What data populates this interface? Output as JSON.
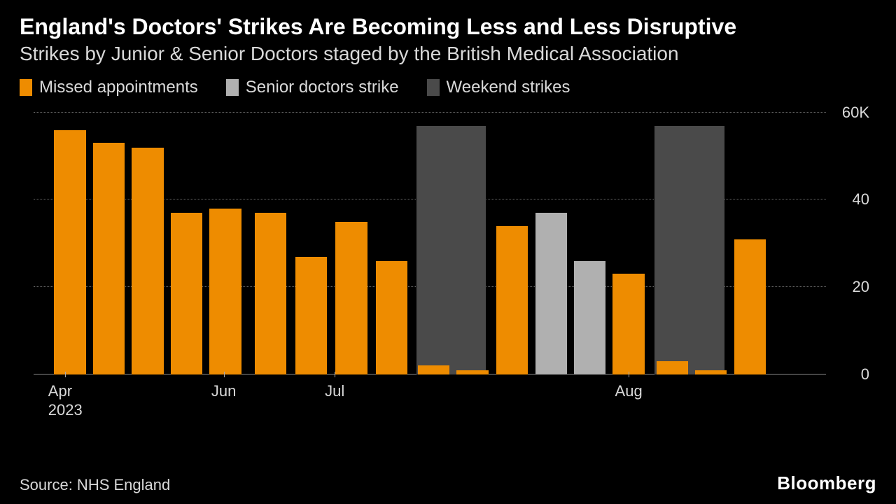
{
  "title": "England's Doctors' Strikes Are Becoming Less and Less Disruptive",
  "subtitle": "Strikes by Junior & Senior Doctors staged by the British Medical Association",
  "source": "Source: NHS England",
  "brand": "Bloomberg",
  "legend": [
    {
      "label": "Missed appointments",
      "color": "#ee8c00"
    },
    {
      "label": "Senior doctors strike",
      "color": "#b0b0b0"
    },
    {
      "label": "Weekend strikes",
      "color": "#4a4a4a"
    }
  ],
  "chart": {
    "type": "bar",
    "background_color": "#000000",
    "grid_color": "#666666",
    "axis_color": "#888888",
    "text_color": "#d9d9d9",
    "bar_width_pct": 4.0,
    "bar_gap_pct": 0.9,
    "ylim": [
      0,
      60
    ],
    "yticks": [
      0,
      20,
      40,
      60
    ],
    "ytick_labels": [
      "0",
      "20",
      "40",
      "60K"
    ],
    "bg_bar_width_pct": 8.8,
    "background_bars": [
      {
        "left_pct": 48.3,
        "value": 57
      },
      {
        "left_pct": 78.4,
        "value": 57
      }
    ],
    "bars": [
      {
        "value": 56,
        "color": "#ee8c00"
      },
      {
        "value": 53,
        "color": "#ee8c00"
      },
      {
        "value": 52,
        "color": "#ee8c00"
      },
      {
        "value": 37,
        "color": "#ee8c00"
      },
      {
        "value": 38,
        "color": "#ee8c00"
      },
      {
        "value": 37,
        "color": "#ee8c00"
      },
      {
        "value": 27,
        "color": "#ee8c00"
      },
      {
        "value": 35,
        "color": "#ee8c00"
      },
      {
        "value": 26,
        "color": "#ee8c00"
      },
      {
        "value": 2,
        "color": "#ee8c00"
      },
      {
        "value": 1,
        "color": "#ee8c00"
      },
      {
        "value": 34,
        "color": "#ee8c00"
      },
      {
        "value": 37,
        "color": "#b0b0b0"
      },
      {
        "value": 26,
        "color": "#b0b0b0"
      },
      {
        "value": 23,
        "color": "#ee8c00"
      },
      {
        "value": 3,
        "color": "#ee8c00"
      },
      {
        "value": 1,
        "color": "#ee8c00"
      },
      {
        "value": 31,
        "color": "#ee8c00"
      }
    ],
    "bar_positions_pct": [
      2.6,
      7.5,
      12.4,
      17.3,
      22.2,
      27.9,
      33.0,
      38.1,
      43.2,
      48.5,
      53.4,
      58.4,
      63.3,
      68.2,
      73.1,
      78.6,
      83.5,
      88.4
    ],
    "xticks": [
      {
        "left_pct": 4.0,
        "label": "Apr\n2023"
      },
      {
        "left_pct": 24.0,
        "label": "Jun"
      },
      {
        "left_pct": 38.0,
        "label": "Jul"
      },
      {
        "left_pct": 75.1,
        "label": "Aug"
      }
    ]
  }
}
